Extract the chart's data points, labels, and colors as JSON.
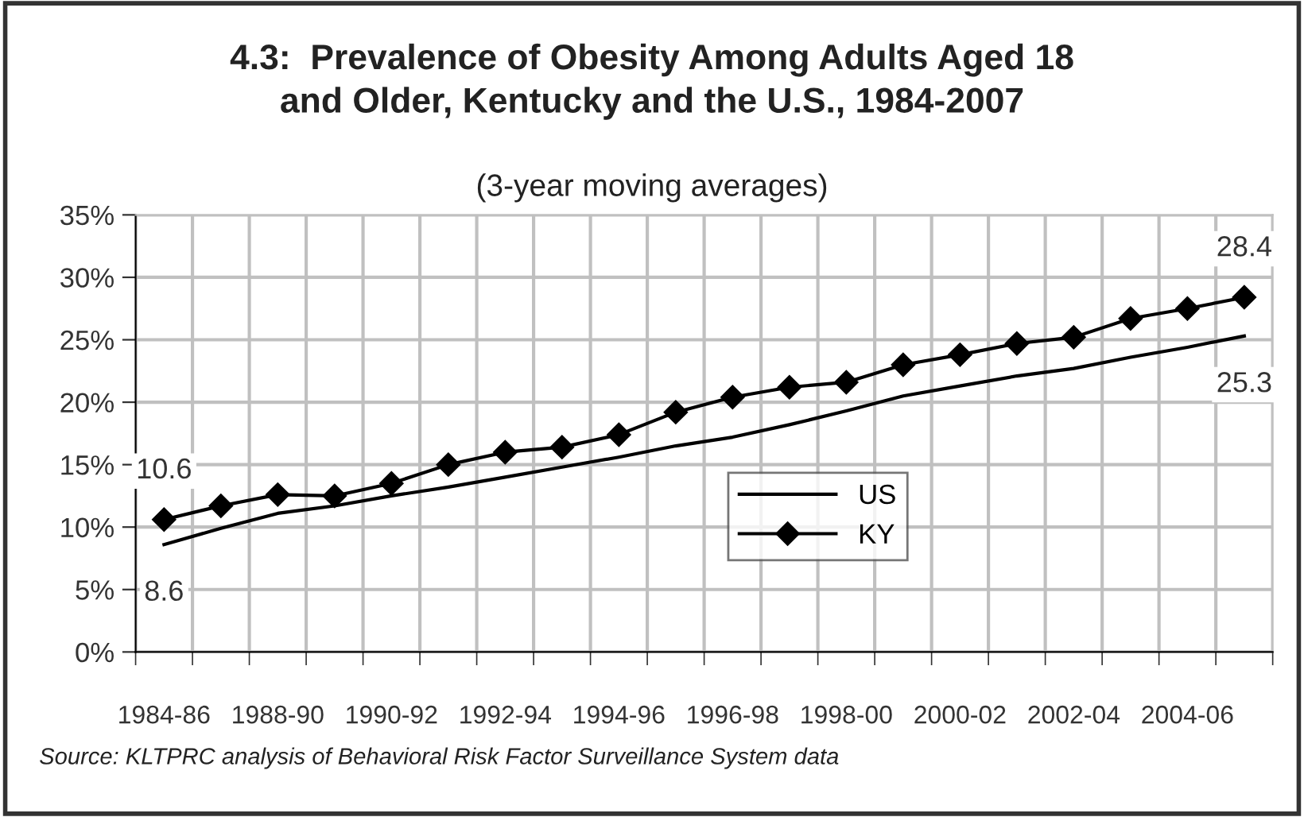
{
  "chart_data": {
    "type": "line",
    "title": "4.3:  Prevalence of Obesity Among Adults Aged 18\nand Older, Kentucky and the U.S., 1984-2007",
    "subtitle": "(3-year moving averages)",
    "categories": [
      "1984-86",
      null,
      "1988-90",
      null,
      "1990-92",
      null,
      "1992-94",
      null,
      "1994-96",
      null,
      "1996-98",
      null,
      "1998-00",
      null,
      "2000-02",
      null,
      "2002-04",
      null,
      "2004-06",
      null
    ],
    "series": [
      {
        "name": "US",
        "color": "#000000",
        "marker": "none",
        "values": [
          8.6,
          9.9,
          11.1,
          11.7,
          12.5,
          13.2,
          14.0,
          14.8,
          15.6,
          16.5,
          17.2,
          18.2,
          19.3,
          20.5,
          21.3,
          22.1,
          22.7,
          23.6,
          24.4,
          25.3
        ],
        "value_labels": [
          "8.6",
          null,
          null,
          null,
          null,
          null,
          null,
          null,
          null,
          null,
          null,
          null,
          null,
          null,
          null,
          null,
          null,
          null,
          null,
          "25.3"
        ]
      },
      {
        "name": "KY",
        "color": "#000000",
        "marker": "diamond",
        "values": [
          10.6,
          11.7,
          12.6,
          12.5,
          13.5,
          15.0,
          16.0,
          16.4,
          17.4,
          19.2,
          20.4,
          21.2,
          21.6,
          23.0,
          23.8,
          24.7,
          25.2,
          26.7,
          27.5,
          28.4
        ],
        "value_labels": [
          "10.6",
          null,
          null,
          null,
          null,
          null,
          null,
          null,
          null,
          null,
          null,
          null,
          null,
          null,
          null,
          null,
          null,
          null,
          null,
          "28.4"
        ]
      }
    ],
    "ylim": [
      0,
      35
    ],
    "yticks": [
      {
        "value": 0,
        "label": "0%"
      },
      {
        "value": 5,
        "label": "5%"
      },
      {
        "value": 10,
        "label": "10%"
      },
      {
        "value": 15,
        "label": "15%"
      },
      {
        "value": 20,
        "label": "20%"
      },
      {
        "value": 25,
        "label": "25%"
      },
      {
        "value": 30,
        "label": "30%"
      },
      {
        "value": 35,
        "label": "35%"
      }
    ],
    "grid": true,
    "legend": "center",
    "annotations": [
      "Source: KLTPRC analysis of Behavioral Risk Factor Surveillance System data"
    ]
  }
}
